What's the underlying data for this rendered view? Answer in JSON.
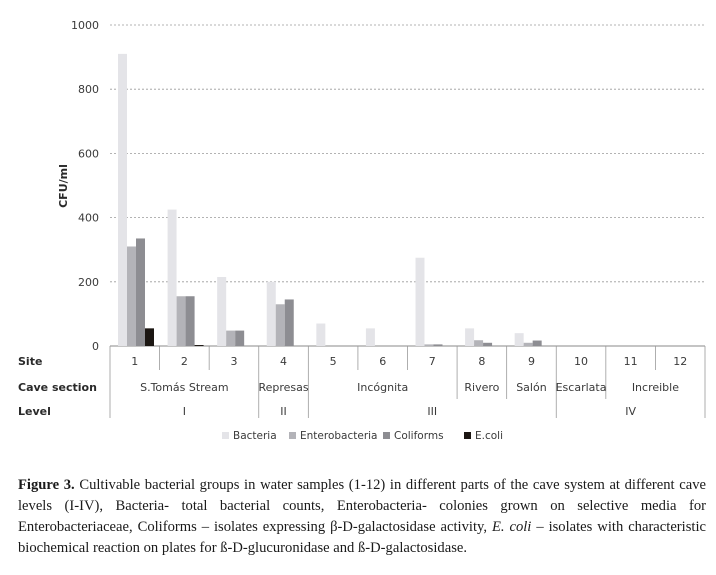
{
  "chart_data": {
    "type": "bar",
    "ylabel": "CFU/ml",
    "ylim": [
      0,
      1000
    ],
    "yticks": [
      "0",
      "200",
      "400",
      "600",
      "800",
      "1000"
    ],
    "grid": true,
    "legend_position": "bottom",
    "row_labels": {
      "site": "Site",
      "section": "Cave section",
      "level": "Level"
    },
    "categories": [
      "1",
      "2",
      "3",
      "4",
      "5",
      "6",
      "7",
      "8",
      "9",
      "10",
      "11",
      "12"
    ],
    "cave_sections": [
      {
        "label": "S.Tomás Stream",
        "span": [
          1,
          3
        ]
      },
      {
        "label": "Represas",
        "span": [
          4,
          4
        ]
      },
      {
        "label": "Incógnita",
        "span": [
          5,
          7
        ]
      },
      {
        "label": "Rivero",
        "span": [
          8,
          8
        ]
      },
      {
        "label": "Salón",
        "span": [
          9,
          9
        ]
      },
      {
        "label": "Escarlata",
        "span": [
          10,
          10
        ]
      },
      {
        "label": "Increible",
        "span": [
          11,
          12
        ]
      }
    ],
    "levels": [
      {
        "label": "I",
        "span": [
          1,
          3
        ]
      },
      {
        "label": "II",
        "span": [
          4,
          4
        ]
      },
      {
        "label": "III",
        "span": [
          5,
          9
        ]
      },
      {
        "label": "IV",
        "span": [
          10,
          12
        ]
      }
    ],
    "series": [
      {
        "name": "Bacteria",
        "color": "#e4e4e8",
        "values": [
          910,
          425,
          215,
          200,
          70,
          55,
          275,
          55,
          40,
          0,
          0,
          0
        ]
      },
      {
        "name": "Enterobacteria",
        "color": "#b3b3b8",
        "values": [
          310,
          155,
          48,
          130,
          0,
          0,
          5,
          18,
          10,
          0,
          0,
          0
        ]
      },
      {
        "name": "Coliforms",
        "color": "#8d8d92",
        "values": [
          335,
          155,
          48,
          145,
          0,
          0,
          5,
          10,
          17,
          0,
          0,
          0
        ]
      },
      {
        "name": "E.coli",
        "color": "#1b1612",
        "values": [
          55,
          3,
          0,
          0,
          0,
          0,
          0,
          0,
          0,
          0,
          0,
          0
        ]
      }
    ]
  },
  "caption": {
    "figure_label": "Figure 3.",
    "part1": " Cultivable bacterial groups in water samples (1-12) in different parts of the cave system at different cave levels (I-IV), Bacteria- total bacterial counts, Enterobacteria- colonies grown on selective media for Enterobacteriaceae, Coliforms – isolates expressing β-D-galactosidase activity, ",
    "ecoli": "E. coli",
    "part2": " – isolates with characteristic biochemical reaction on plates for ß-D-glucuronidase and ß-D-galactosidase."
  }
}
